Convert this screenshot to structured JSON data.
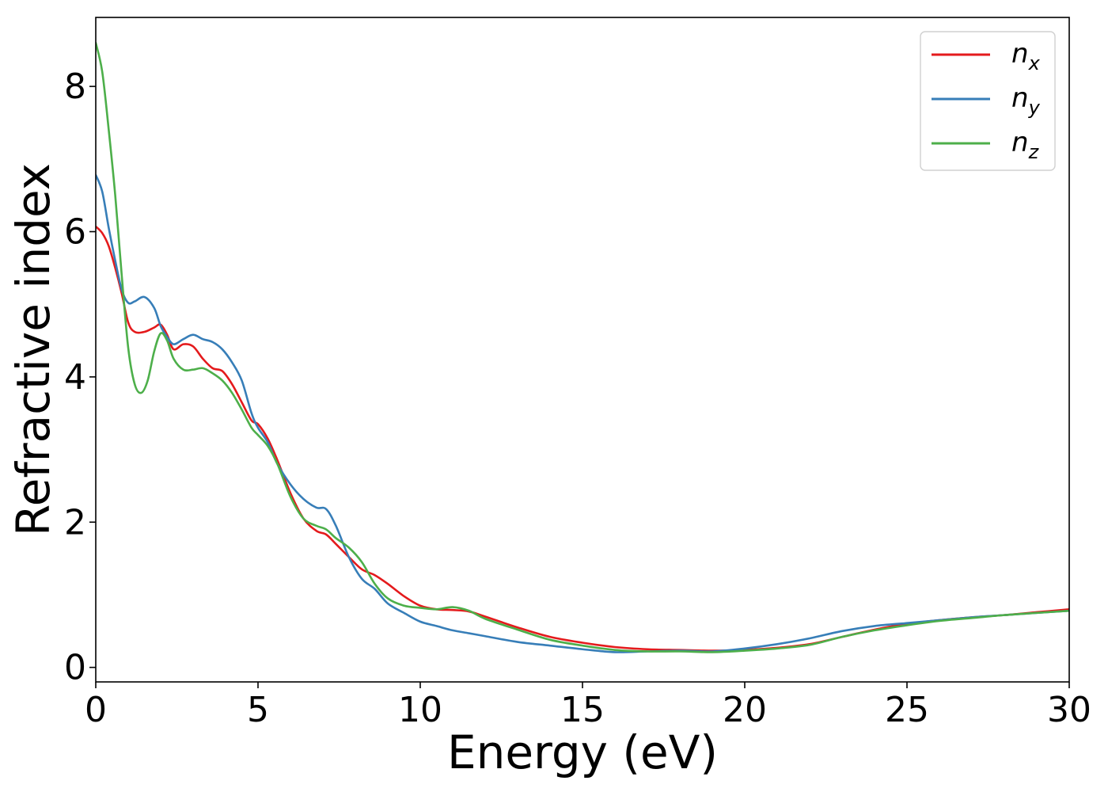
{
  "chart_data": {
    "type": "line",
    "title": "",
    "xlabel": "Energy (eV)",
    "ylabel": "Refractive index",
    "xlim": [
      0,
      30
    ],
    "ylim": [
      -0.2,
      8.95
    ],
    "xticks": [
      "0",
      "5",
      "10",
      "15",
      "20",
      "25",
      "30"
    ],
    "yticks": [
      "0",
      "2",
      "4",
      "6",
      "8"
    ],
    "grid": false,
    "legend_position": "top-right",
    "series": [
      {
        "name": "n",
        "subscript": "x",
        "color": "#e41a1c",
        "x": [
          0,
          0.2,
          0.4,
          0.6,
          0.8,
          1.0,
          1.2,
          1.5,
          1.8,
          2.0,
          2.2,
          2.4,
          2.7,
          3.0,
          3.3,
          3.6,
          3.9,
          4.2,
          4.5,
          4.8,
          5.0,
          5.3,
          5.6,
          6.0,
          6.4,
          6.8,
          7.1,
          7.4,
          7.8,
          8.2,
          8.6,
          9.0,
          9.5,
          10.0,
          10.5,
          11.0,
          11.5,
          12.0,
          13.0,
          14.0,
          15.0,
          16.0,
          17.0,
          18.0,
          19.0,
          20.0,
          21.0,
          22.0,
          23.0,
          24.0,
          25.0,
          26.0,
          27.0,
          28.0,
          29.0,
          30.0
        ],
        "y": [
          6.07,
          5.98,
          5.8,
          5.5,
          5.15,
          4.75,
          4.62,
          4.62,
          4.68,
          4.72,
          4.58,
          4.38,
          4.45,
          4.42,
          4.25,
          4.12,
          4.08,
          3.9,
          3.65,
          3.4,
          3.35,
          3.15,
          2.85,
          2.4,
          2.05,
          1.88,
          1.83,
          1.7,
          1.52,
          1.35,
          1.27,
          1.15,
          0.98,
          0.85,
          0.8,
          0.79,
          0.77,
          0.7,
          0.55,
          0.42,
          0.34,
          0.28,
          0.25,
          0.24,
          0.23,
          0.24,
          0.27,
          0.32,
          0.42,
          0.52,
          0.6,
          0.65,
          0.69,
          0.72,
          0.76,
          0.8
        ]
      },
      {
        "name": "n",
        "subscript": "y",
        "color": "#377eb8",
        "x": [
          0,
          0.2,
          0.4,
          0.6,
          0.8,
          1.0,
          1.2,
          1.5,
          1.8,
          2.0,
          2.2,
          2.4,
          2.7,
          3.0,
          3.3,
          3.6,
          3.9,
          4.2,
          4.5,
          4.8,
          5.0,
          5.3,
          5.6,
          6.0,
          6.4,
          6.8,
          7.1,
          7.4,
          7.8,
          8.2,
          8.6,
          9.0,
          9.5,
          10.0,
          10.5,
          11.0,
          11.5,
          12.0,
          13.0,
          14.0,
          15.0,
          16.0,
          17.0,
          18.0,
          19.0,
          20.0,
          21.0,
          22.0,
          23.0,
          24.0,
          25.0,
          26.0,
          27.0,
          28.0,
          29.0,
          30.0
        ],
        "y": [
          6.78,
          6.55,
          6.05,
          5.6,
          5.2,
          5.02,
          5.04,
          5.1,
          4.95,
          4.7,
          4.55,
          4.45,
          4.52,
          4.58,
          4.52,
          4.48,
          4.38,
          4.2,
          3.95,
          3.5,
          3.3,
          3.1,
          2.8,
          2.52,
          2.32,
          2.2,
          2.18,
          1.95,
          1.52,
          1.22,
          1.08,
          0.88,
          0.75,
          0.63,
          0.57,
          0.51,
          0.47,
          0.43,
          0.35,
          0.3,
          0.25,
          0.21,
          0.22,
          0.23,
          0.22,
          0.26,
          0.32,
          0.4,
          0.5,
          0.57,
          0.61,
          0.65,
          0.69,
          0.72,
          0.75,
          0.78
        ]
      },
      {
        "name": "n",
        "subscript": "z",
        "color": "#4daf4a",
        "x": [
          0,
          0.2,
          0.4,
          0.6,
          0.8,
          1.0,
          1.2,
          1.4,
          1.6,
          1.8,
          2.0,
          2.2,
          2.4,
          2.7,
          3.0,
          3.3,
          3.6,
          3.9,
          4.2,
          4.5,
          4.8,
          5.0,
          5.3,
          5.6,
          6.0,
          6.4,
          6.8,
          7.1,
          7.4,
          7.8,
          8.2,
          8.6,
          9.0,
          9.5,
          10.0,
          10.5,
          11.0,
          11.5,
          12.0,
          13.0,
          14.0,
          15.0,
          16.0,
          17.0,
          18.0,
          19.0,
          20.0,
          21.0,
          22.0,
          23.0,
          24.0,
          25.0,
          26.0,
          27.0,
          28.0,
          29.0,
          30.0
        ],
        "y": [
          8.6,
          8.2,
          7.4,
          6.5,
          5.4,
          4.4,
          3.9,
          3.78,
          3.95,
          4.35,
          4.6,
          4.5,
          4.25,
          4.1,
          4.1,
          4.12,
          4.05,
          3.95,
          3.78,
          3.55,
          3.3,
          3.2,
          3.05,
          2.8,
          2.35,
          2.05,
          1.95,
          1.9,
          1.78,
          1.65,
          1.45,
          1.15,
          0.95,
          0.85,
          0.82,
          0.8,
          0.83,
          0.78,
          0.67,
          0.52,
          0.38,
          0.3,
          0.24,
          0.22,
          0.22,
          0.21,
          0.23,
          0.26,
          0.31,
          0.42,
          0.51,
          0.58,
          0.64,
          0.68,
          0.72,
          0.75,
          0.78
        ]
      }
    ]
  }
}
